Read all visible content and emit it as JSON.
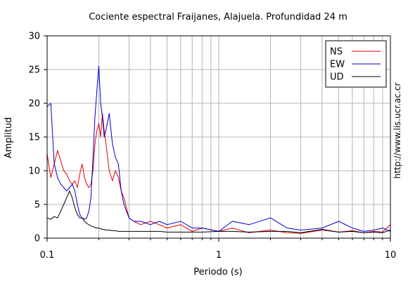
{
  "chart_data": {
    "type": "line",
    "title": "Cociente espectral Fraijanes, Alajuela. Profundidad 24 m",
    "xlabel": "Periodo (s)",
    "ylabel": "Amplitud",
    "x_scale": "log",
    "xlim": [
      0.1,
      10
    ],
    "ylim": [
      0,
      30
    ],
    "x_ticks": [
      0.1,
      1,
      10
    ],
    "x_tick_labels": [
      "0.1",
      "1",
      "10"
    ],
    "y_ticks": [
      0,
      5,
      10,
      15,
      20,
      25,
      30
    ],
    "y_tick_labels": [
      "0",
      "5",
      "10",
      "15",
      "20",
      "25",
      "30"
    ],
    "grid": true,
    "legend_position": "top-right",
    "watermark": "http://www.lis.ucr.ac.cr",
    "x": [
      0.1,
      0.105,
      0.11,
      0.115,
      0.12,
      0.125,
      0.13,
      0.135,
      0.14,
      0.145,
      0.15,
      0.155,
      0.16,
      0.165,
      0.17,
      0.175,
      0.18,
      0.185,
      0.19,
      0.195,
      0.2,
      0.205,
      0.21,
      0.215,
      0.22,
      0.23,
      0.24,
      0.25,
      0.26,
      0.27,
      0.28,
      0.3,
      0.32,
      0.35,
      0.4,
      0.45,
      0.5,
      0.6,
      0.7,
      0.8,
      1,
      1.2,
      1.5,
      2,
      2.5,
      3,
      4,
      5,
      6,
      7,
      8,
      9,
      10
    ],
    "series": [
      {
        "name": "NS",
        "color": "#e00000",
        "values": [
          12.5,
          9,
          11,
          13,
          11.5,
          10,
          9.5,
          8.5,
          8,
          8.5,
          7.5,
          9.5,
          11,
          9,
          8,
          7.5,
          8,
          10,
          14,
          16,
          17,
          15,
          18.5,
          16,
          14,
          10,
          8.5,
          10,
          9,
          7,
          6,
          3,
          2.5,
          2,
          2.5,
          2,
          1.5,
          2,
          1,
          1.5,
          1,
          1.5,
          0.8,
          1.2,
          0.8,
          0.7,
          1.2,
          0.9,
          1.1,
          0.8,
          1,
          0.9,
          2
        ]
      },
      {
        "name": "EW",
        "color": "#0000cc",
        "values": [
          19.5,
          20,
          11,
          9,
          8,
          7.5,
          7,
          7.5,
          8,
          7,
          5,
          3.5,
          3,
          2.8,
          3,
          4,
          6,
          12,
          18,
          22,
          25.5,
          20,
          18,
          15,
          16,
          18.5,
          14,
          12,
          11,
          7,
          5,
          3,
          2.5,
          2.5,
          2,
          2.5,
          2,
          2.5,
          1.5,
          1.5,
          1,
          2.5,
          2,
          3,
          1.5,
          1.2,
          1.5,
          2.5,
          1.5,
          1,
          1.2,
          1.5,
          1
        ]
      },
      {
        "name": "UD",
        "color": "#000000",
        "values": [
          3,
          2.8,
          3.2,
          3,
          4,
          5,
          6,
          7,
          6,
          4.5,
          3.5,
          3,
          3,
          2.5,
          2.2,
          2,
          1.8,
          1.7,
          1.6,
          1.5,
          1.5,
          1.4,
          1.3,
          1.3,
          1.2,
          1.2,
          1.1,
          1.1,
          1,
          1,
          1,
          1,
          1,
          1,
          1,
          1,
          0.9,
          0.9,
          0.9,
          0.9,
          1,
          1,
          0.9,
          1,
          1,
          0.8,
          1.3,
          0.9,
          1,
          0.8,
          0.9,
          0.8,
          1.2
        ]
      }
    ]
  }
}
